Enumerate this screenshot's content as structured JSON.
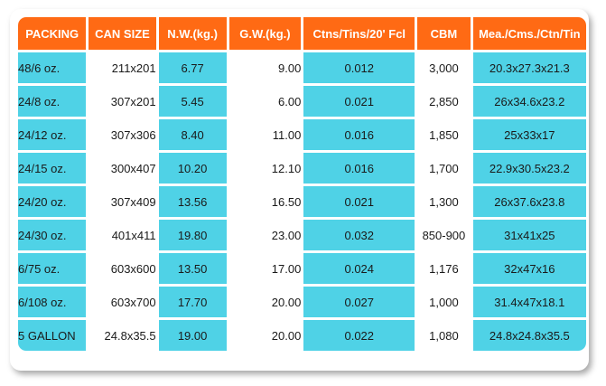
{
  "table": {
    "headers": [
      "PACKING",
      "CAN SIZE",
      "N.W.(kg.)",
      "G.W.(kg.)",
      "Ctns/Tins/20' Fcl",
      "CBM",
      "Mea./Cms./Ctn/Tin"
    ],
    "rows": [
      [
        "48/6 oz.",
        "211x201",
        "6.77",
        "9.00",
        "0.012",
        "3,000",
        "20.3x27.3x21.3"
      ],
      [
        "24/8 oz.",
        "307x201",
        "5.45",
        "6.00",
        "0.021",
        "2,850",
        "26x34.6x23.2"
      ],
      [
        "24/12 oz.",
        "307x306",
        "8.40",
        "11.00",
        "0.016",
        "1,850",
        "25x33x17"
      ],
      [
        "24/15 oz.",
        "300x407",
        "10.20",
        "12.10",
        "0.016",
        "1,700",
        "22.9x30.5x23.2"
      ],
      [
        "24/20 oz.",
        "307x409",
        "13.56",
        "16.50",
        "0.021",
        "1,300",
        "26x37.6x23.8"
      ],
      [
        "24/30 oz.",
        "401x411",
        "19.80",
        "23.00",
        "0.032",
        "850-900",
        "31x41x25"
      ],
      [
        "6/75 oz.",
        "603x600",
        "13.50",
        "17.00",
        "0.024",
        "1,176",
        "32x47x16"
      ],
      [
        "6/108 oz.",
        "603x700",
        "17.70",
        "20.00",
        "0.027",
        "1,000",
        "31.4x47x18.1"
      ],
      [
        "5 GALLON",
        "24.8x35.5",
        "19.00",
        "20.00",
        "0.022",
        "1,080",
        "24.8x24.8x35.5"
      ]
    ]
  },
  "colors": {
    "header_bg": "#ff6a14",
    "header_text": "#ffffff",
    "cyan_cell": "#4fd2e6",
    "white_cell": "#ffffff"
  }
}
